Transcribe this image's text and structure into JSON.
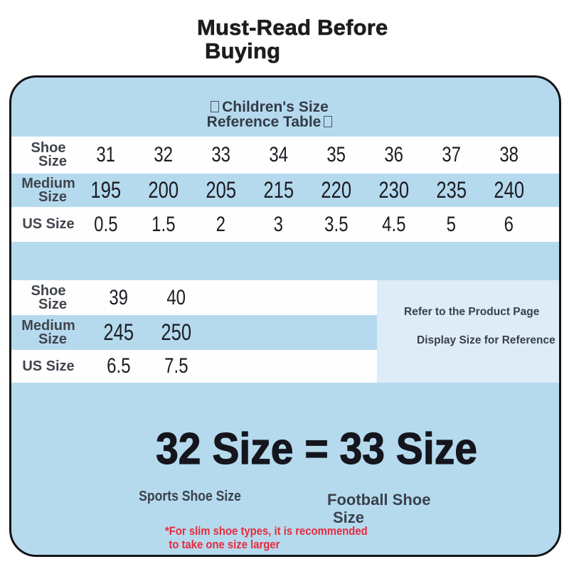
{
  "page": {
    "title_line1": "Must-Read Before",
    "title_line2": "Buying"
  },
  "card": {
    "header_line1": "Children's Size",
    "header_line2": "Reference Table",
    "tables": {
      "main": {
        "rows": [
          {
            "label1": "Shoe",
            "label2": "Size",
            "values": [
              "31",
              "32",
              "33",
              "34",
              "35",
              "36",
              "37",
              "38"
            ]
          },
          {
            "label1": "Medium",
            "label2": "Size",
            "values": [
              "195",
              "200",
              "205",
              "215",
              "220",
              "230",
              "235",
              "240"
            ]
          },
          {
            "label1": "US Size",
            "label2": "",
            "values": [
              "0.5",
              "1.5",
              "2",
              "3",
              "3.5",
              "4.5",
              "5",
              "6"
            ]
          }
        ]
      },
      "extended": {
        "rows": [
          {
            "label1": "Shoe",
            "label2": "Size",
            "values": [
              "39",
              "40"
            ]
          },
          {
            "label1": "Medium",
            "label2": "Size",
            "values": [
              "245",
              "250"
            ]
          },
          {
            "label1": "US Size",
            "label2": "",
            "values": [
              "6.5",
              "7.5"
            ]
          }
        ]
      }
    },
    "reference_note_line1": "Refer to the Product Page",
    "reference_note_line2": "Display Size for Reference",
    "size_equivalence": "32 Size = 33 Size",
    "sports_label": "Sports Shoe Size",
    "football_line1": "Football Shoe",
    "football_line2": "Size",
    "warning_line1": "*For slim shoe types, it is recommended",
    "warning_line2": "to take one size larger"
  },
  "colors": {
    "card_blue": "#b5daee",
    "panel_light_blue": "#ddecf6",
    "row_white": "#fefefe",
    "border_black": "#151515",
    "number_dark": "#1c1c23",
    "label_gray": "#41444d",
    "header_navy": "#333a47",
    "warning_red": "#e82a3d"
  }
}
